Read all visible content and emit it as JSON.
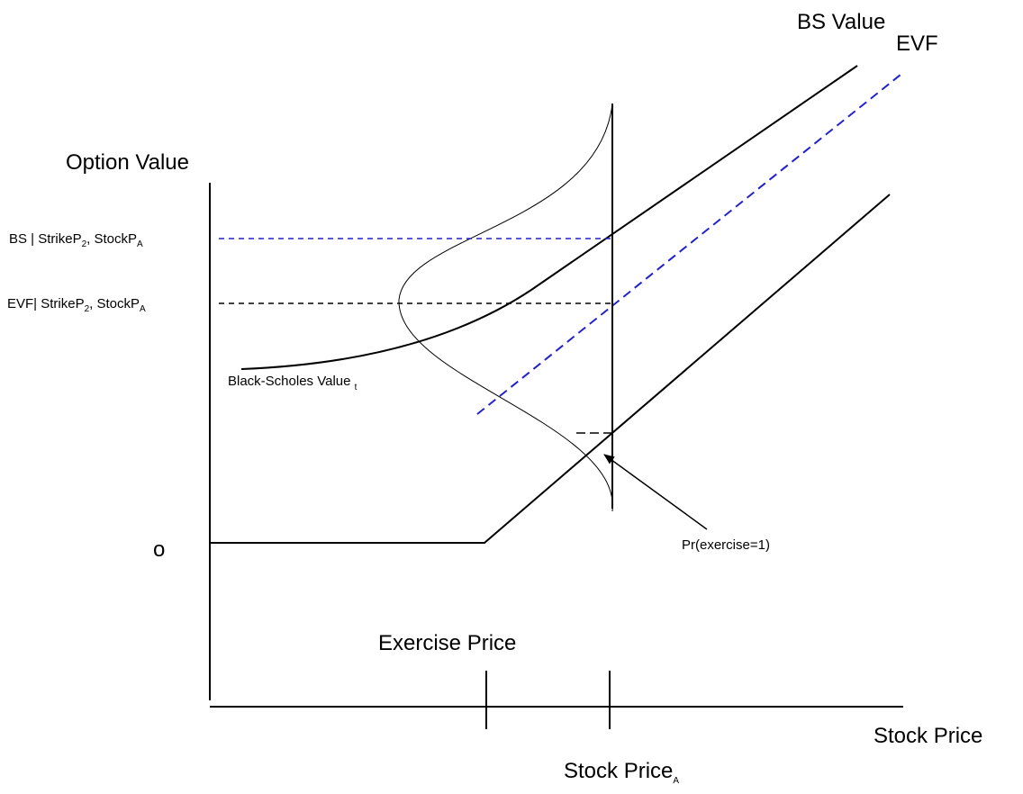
{
  "labels": {
    "bs_value": "BS Value",
    "evf": "EVF",
    "option_value": "Option Value",
    "bs_level": [
      "BS | StrikeP",
      "2",
      ", StockP",
      "A"
    ],
    "evf_level": [
      "EVF| StrikeP",
      "2",
      ", StockP",
      "A"
    ],
    "black_scholes": [
      "Black-Scholes Value ",
      "t"
    ],
    "origin": "o",
    "probability": "Pr(exercise=1)",
    "exercise_price": "Exercise Price",
    "stock_price": "Stock Price",
    "stock_price_a": [
      "Stock Price",
      "A"
    ]
  }
}
